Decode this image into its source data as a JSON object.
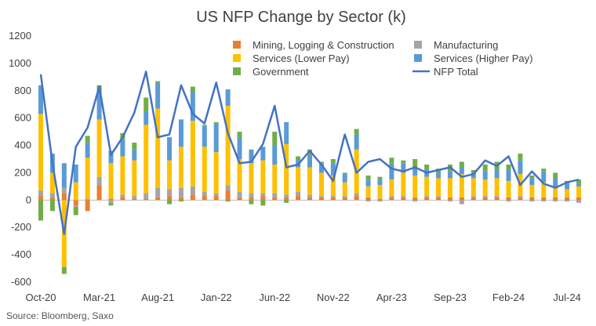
{
  "chart_data": {
    "type": "bar",
    "title": "US NFP Change by Sector (k)",
    "xlabel": "",
    "ylabel": "",
    "ylim": [
      -600,
      1200
    ],
    "yticks": [
      1200,
      1000,
      800,
      600,
      400,
      200,
      0,
      -200,
      -400,
      -600
    ],
    "x_tick_labels": [
      "Oct-20",
      "Mar-21",
      "Aug-21",
      "Jan-22",
      "Jun-22",
      "Nov-22",
      "Apr-23",
      "Sep-23",
      "Feb-24",
      "Jul-24"
    ],
    "x_tick_index": [
      0,
      5,
      10,
      15,
      20,
      25,
      30,
      35,
      40,
      45
    ],
    "categories": [
      "Oct-20",
      "Nov-20",
      "Dec-20",
      "Jan-21",
      "Feb-21",
      "Mar-21",
      "Apr-21",
      "May-21",
      "Jun-21",
      "Jul-21",
      "Aug-21",
      "Sep-21",
      "Oct-21",
      "Nov-21",
      "Dec-21",
      "Jan-22",
      "Feb-22",
      "Mar-22",
      "Apr-22",
      "May-22",
      "Jun-22",
      "Jul-22",
      "Aug-22",
      "Sep-22",
      "Oct-22",
      "Nov-22",
      "Dec-22",
      "Jan-23",
      "Feb-23",
      "Mar-23",
      "Apr-23",
      "May-23",
      "Jun-23",
      "Jul-23",
      "Aug-23",
      "Sep-23",
      "Oct-23",
      "Nov-23",
      "Dec-23",
      "Jan-24",
      "Feb-24",
      "Mar-24",
      "Apr-24",
      "May-24",
      "Jun-24",
      "Jul-24",
      "Aug-24"
    ],
    "series": [
      {
        "name": "Mining, Logging & Construction",
        "type": "bar",
        "color": "#ED7D31",
        "values": [
          30,
          20,
          50,
          -40,
          -80,
          110,
          10,
          20,
          10,
          10,
          20,
          30,
          20,
          40,
          30,
          30,
          70,
          20,
          20,
          30,
          20,
          20,
          30,
          20,
          20,
          20,
          20,
          30,
          20,
          10,
          20,
          20,
          20,
          20,
          20,
          20,
          20,
          20,
          20,
          20,
          20,
          20,
          20,
          20,
          20,
          20,
          20
        ]
      },
      {
        "name": "Manufacturing",
        "type": "bar",
        "color": "#A5A5A5",
        "values": [
          40,
          30,
          40,
          -10,
          10,
          60,
          -20,
          20,
          20,
          40,
          70,
          50,
          70,
          60,
          30,
          20,
          40,
          40,
          30,
          20,
          30,
          20,
          30,
          20,
          10,
          10,
          10,
          20,
          -10,
          -10,
          10,
          10,
          -10,
          10,
          10,
          -10,
          -30,
          10,
          10,
          10,
          -10,
          10,
          -10,
          -10,
          -10,
          -10,
          -20
        ]
      },
      {
        "name": "Services (Lower Pay)",
        "type": "bar",
        "color": "#FFC000",
        "values": [
          560,
          150,
          -490,
          130,
          300,
          420,
          260,
          280,
          260,
          500,
          580,
          210,
          300,
          480,
          330,
          300,
          580,
          240,
          220,
          240,
          210,
          370,
          180,
          200,
          170,
          150,
          100,
          320,
          80,
          100,
          120,
          170,
          160,
          140,
          130,
          140,
          170,
          130,
          120,
          130,
          120,
          160,
          90,
          110,
          80,
          60,
          80
        ]
      },
      {
        "name": "Services (Higher Pay)",
        "type": "bar",
        "color": "#5B9BD5",
        "values": [
          210,
          140,
          180,
          130,
          110,
          200,
          90,
          120,
          80,
          100,
          190,
          170,
          200,
          210,
          150,
          210,
          120,
          160,
          100,
          100,
          140,
          160,
          60,
          90,
          70,
          90,
          60,
          110,
          50,
          40,
          120,
          70,
          60,
          50,
          40,
          50,
          50,
          40,
          60,
          60,
          80,
          100,
          50,
          80,
          60,
          40,
          20
        ]
      },
      {
        "name": "Government",
        "type": "bar",
        "color": "#70AD47",
        "values": [
          -150,
          -80,
          -50,
          -60,
          50,
          50,
          -20,
          50,
          50,
          100,
          10,
          -30,
          -10,
          40,
          10,
          10,
          -10,
          40,
          -30,
          -40,
          100,
          -20,
          20,
          40,
          10,
          30,
          10,
          40,
          30,
          20,
          40,
          20,
          60,
          40,
          30,
          50,
          40,
          20,
          50,
          60,
          40,
          50,
          20,
          20,
          40,
          20,
          30
        ]
      },
      {
        "name": "NFP Total",
        "type": "line",
        "color": "#4472C4",
        "values": [
          920,
          270,
          -250,
          390,
          530,
          830,
          330,
          460,
          640,
          940,
          460,
          480,
          840,
          630,
          560,
          860,
          490,
          270,
          280,
          410,
          690,
          240,
          260,
          360,
          260,
          140,
          480,
          200,
          280,
          300,
          230,
          210,
          240,
          200,
          220,
          240,
          170,
          190,
          290,
          250,
          320,
          110,
          210,
          120,
          90,
          130,
          150
        ]
      }
    ],
    "legend": {
      "position": "top-right",
      "entries": [
        "Mining, Logging & Construction",
        "Manufacturing",
        "Services (Lower Pay)",
        "Services (Higher Pay)",
        "Government",
        "NFP Total"
      ]
    },
    "source": "Source: Bloomberg, Saxo"
  }
}
